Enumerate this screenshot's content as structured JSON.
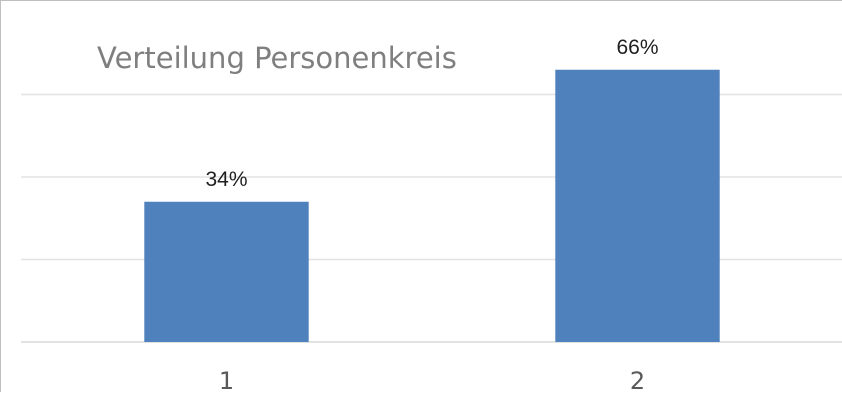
{
  "chart_data": {
    "type": "bar",
    "title": "Verteilung Personenkreis",
    "categories": [
      "1",
      "2"
    ],
    "values": [
      34,
      66
    ],
    "data_labels": [
      "34%",
      "66%"
    ],
    "unit": "%",
    "ylim": [
      0,
      80
    ],
    "gridlines": [
      0,
      20,
      40,
      60
    ],
    "grid": true,
    "legend": "none",
    "bar_color": "#4f81bd"
  }
}
